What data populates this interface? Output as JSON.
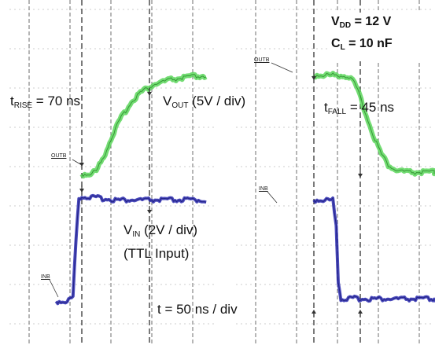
{
  "chart_data": [
    {
      "type": "line",
      "panel": "rise",
      "x_units": "ns",
      "y_units": "V",
      "series": [
        {
          "name": "OUTB",
          "color": "#5bd65b",
          "points": [
            [
              0,
              0
            ],
            [
              10,
              0
            ],
            [
              20,
              0.4
            ],
            [
              30,
              2.1
            ],
            [
              40,
              4.3
            ],
            [
              50,
              6.2
            ],
            [
              60,
              7.7
            ],
            [
              70,
              9.0
            ],
            [
              80,
              9.9
            ],
            [
              100,
              10.9
            ],
            [
              120,
              11.4
            ],
            [
              150,
              11.8
            ],
            [
              170,
              11.9
            ]
          ]
        },
        {
          "name": "INB",
          "color": "#2b2bb0",
          "points": [
            [
              -35,
              0
            ],
            [
              -20,
              0
            ],
            [
              -12,
              0.2
            ],
            [
              -8,
              2.6
            ],
            [
              -4,
              4.4
            ],
            [
              0,
              4.45
            ],
            [
              50,
              4.3
            ],
            [
              100,
              4.3
            ],
            [
              170,
              4.3
            ]
          ]
        }
      ]
    },
    {
      "type": "line",
      "panel": "fall",
      "x_units": "ns",
      "y_units": "V",
      "series": [
        {
          "name": "OUTB",
          "color": "#5bd65b",
          "points": [
            [
              0,
              12
            ],
            [
              40,
              12
            ],
            [
              52,
              11.8
            ],
            [
              60,
              11.0
            ],
            [
              70,
              9.0
            ],
            [
              80,
              6.5
            ],
            [
              90,
              4.3
            ],
            [
              100,
              2.4
            ],
            [
              110,
              1.1
            ],
            [
              120,
              0.5
            ],
            [
              140,
              0.2
            ],
            [
              185,
              0.2
            ]
          ]
        },
        {
          "name": "INB",
          "color": "#2b2bb0",
          "points": [
            [
              0,
              4.3
            ],
            [
              28,
              4.3
            ],
            [
              33,
              3.2
            ],
            [
              36,
              0.9
            ],
            [
              40,
              0.1
            ],
            [
              60,
              0.12
            ],
            [
              120,
              0.1
            ],
            [
              185,
              0.1
            ]
          ]
        }
      ]
    }
  ],
  "labels": {
    "vdd": {
      "main": "V",
      "sub": "DD",
      "rest": " = 12 V"
    },
    "cl": {
      "main": "C",
      "sub": "L",
      "rest": " = 10 nF"
    },
    "trise": {
      "main": "t",
      "sub": "RISE",
      "rest": " = 70 ns"
    },
    "vout": {
      "main": "V",
      "sub": "OUT",
      "rest": " (5V / div)"
    },
    "tfall": {
      "main": "t",
      "sub": "FALL",
      "rest": " = 45 ns"
    },
    "vin": {
      "main": "V",
      "sub": "IN",
      "rest": " (2V / div)"
    },
    "ttl": "(TTL Input)",
    "tdiv": "t = 50 ns / div",
    "tag_outb_rise": "OUTB",
    "tag_outb_fall": "OUTB",
    "tag_inb_rise": "INB",
    "tag_inb_fall": "INB"
  }
}
